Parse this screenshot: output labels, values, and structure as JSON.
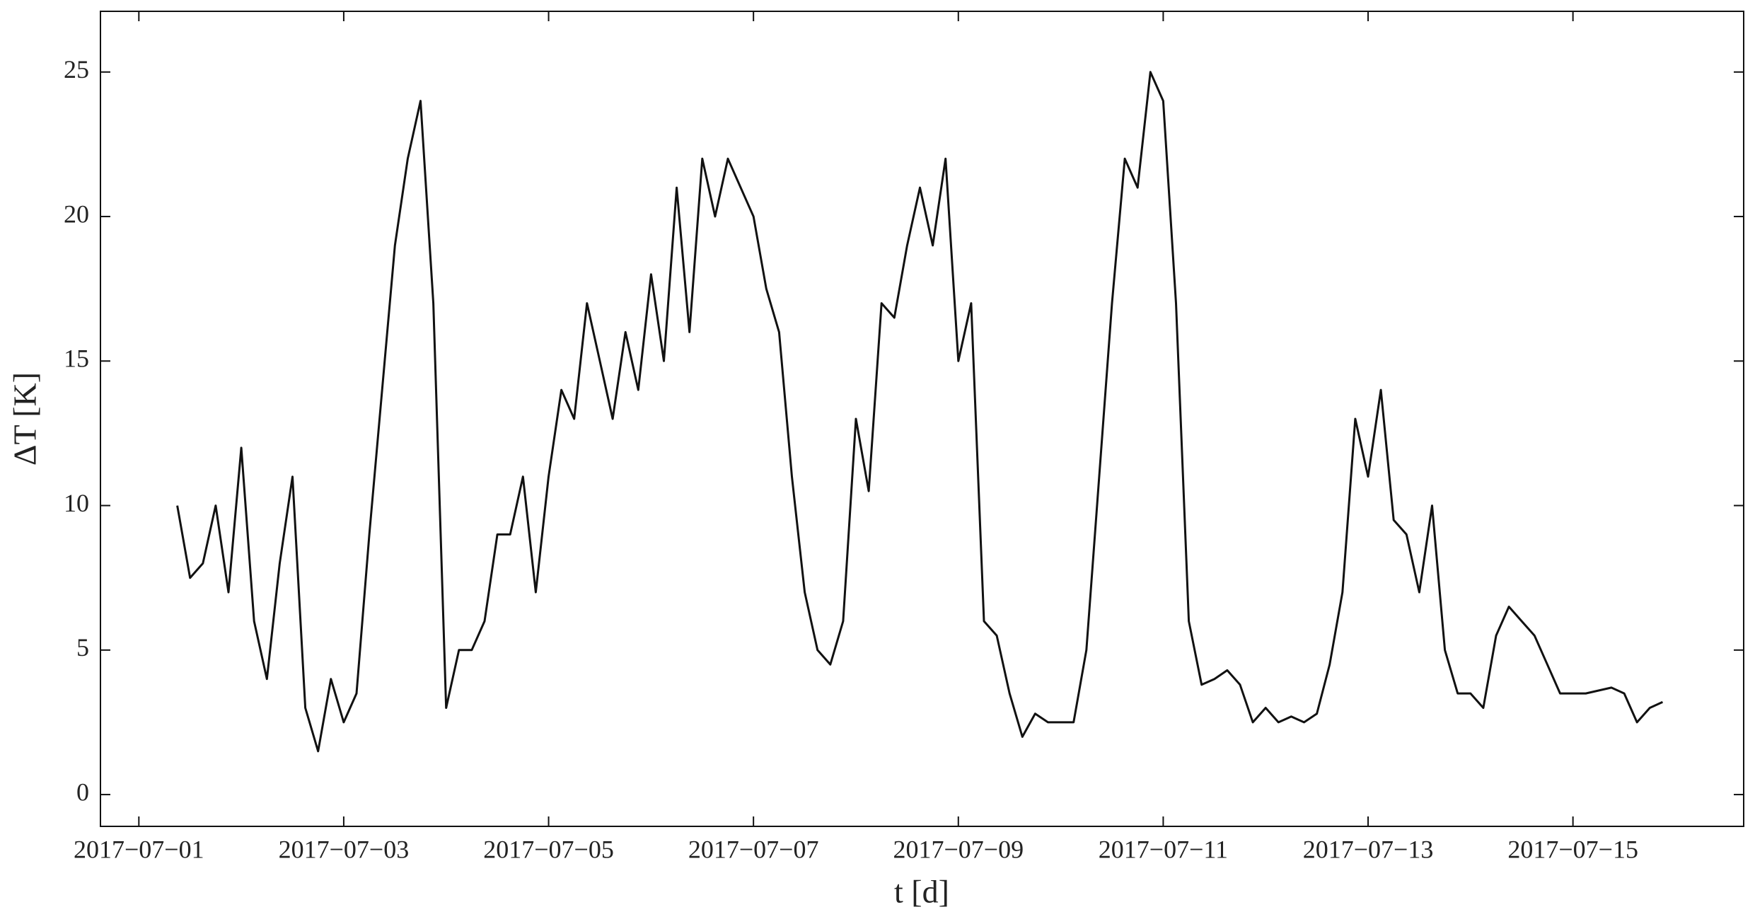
{
  "chart_data": {
    "type": "line",
    "x_label": "t [d]",
    "y_label": "ΔT [K]",
    "color": "#111111",
    "x": [
      "2017-07-01T09:00",
      "2017-07-01T12:00",
      "2017-07-01T15:00",
      "2017-07-01T18:00",
      "2017-07-01T21:00",
      "2017-07-02T00:00",
      "2017-07-02T03:00",
      "2017-07-02T06:00",
      "2017-07-02T09:00",
      "2017-07-02T12:00",
      "2017-07-02T15:00",
      "2017-07-02T18:00",
      "2017-07-02T21:00",
      "2017-07-03T00:00",
      "2017-07-03T03:00",
      "2017-07-03T06:00",
      "2017-07-03T09:00",
      "2017-07-03T12:00",
      "2017-07-03T15:00",
      "2017-07-03T18:00",
      "2017-07-03T21:00",
      "2017-07-04T00:00",
      "2017-07-04T03:00",
      "2017-07-04T06:00",
      "2017-07-04T09:00",
      "2017-07-04T12:00",
      "2017-07-04T15:00",
      "2017-07-04T18:00",
      "2017-07-04T21:00",
      "2017-07-05T00:00",
      "2017-07-05T03:00",
      "2017-07-05T06:00",
      "2017-07-05T09:00",
      "2017-07-05T12:00",
      "2017-07-05T15:00",
      "2017-07-05T18:00",
      "2017-07-05T21:00",
      "2017-07-06T00:00",
      "2017-07-06T03:00",
      "2017-07-06T06:00",
      "2017-07-06T09:00",
      "2017-07-06T12:00",
      "2017-07-06T15:00",
      "2017-07-06T18:00",
      "2017-07-06T21:00",
      "2017-07-07T00:00",
      "2017-07-07T03:00",
      "2017-07-07T06:00",
      "2017-07-07T09:00",
      "2017-07-07T12:00",
      "2017-07-07T15:00",
      "2017-07-07T18:00",
      "2017-07-07T21:00",
      "2017-07-08T00:00",
      "2017-07-08T03:00",
      "2017-07-08T06:00",
      "2017-07-08T09:00",
      "2017-07-08T12:00",
      "2017-07-08T15:00",
      "2017-07-08T18:00",
      "2017-07-08T21:00",
      "2017-07-09T00:00",
      "2017-07-09T03:00",
      "2017-07-09T06:00",
      "2017-07-09T09:00",
      "2017-07-09T12:00",
      "2017-07-09T15:00",
      "2017-07-09T18:00",
      "2017-07-09T21:00",
      "2017-07-10T00:00",
      "2017-07-10T03:00",
      "2017-07-10T06:00",
      "2017-07-10T09:00",
      "2017-07-10T12:00",
      "2017-07-10T15:00",
      "2017-07-10T18:00",
      "2017-07-10T21:00",
      "2017-07-11T00:00",
      "2017-07-11T03:00",
      "2017-07-11T06:00",
      "2017-07-11T09:00",
      "2017-07-11T12:00",
      "2017-07-11T15:00",
      "2017-07-11T18:00",
      "2017-07-11T21:00",
      "2017-07-12T00:00",
      "2017-07-12T03:00",
      "2017-07-12T06:00",
      "2017-07-12T09:00",
      "2017-07-12T12:00",
      "2017-07-12T15:00",
      "2017-07-12T18:00",
      "2017-07-12T21:00",
      "2017-07-13T00:00",
      "2017-07-13T03:00",
      "2017-07-13T06:00",
      "2017-07-13T09:00",
      "2017-07-13T12:00",
      "2017-07-13T15:00",
      "2017-07-13T18:00",
      "2017-07-13T21:00",
      "2017-07-14T00:00",
      "2017-07-14T03:00",
      "2017-07-14T06:00",
      "2017-07-14T09:00",
      "2017-07-14T12:00",
      "2017-07-14T15:00",
      "2017-07-14T18:00",
      "2017-07-14T21:00",
      "2017-07-15T00:00",
      "2017-07-15T03:00",
      "2017-07-15T06:00",
      "2017-07-15T09:00",
      "2017-07-15T12:00",
      "2017-07-15T15:00",
      "2017-07-15T18:00",
      "2017-07-15T21:00"
    ],
    "values": [
      10,
      7.5,
      8,
      10,
      7,
      12,
      6,
      4,
      8,
      11,
      3,
      1.5,
      4,
      2.5,
      3.5,
      9,
      14,
      19,
      22,
      24,
      17,
      3,
      5,
      5,
      6,
      9,
      9,
      11,
      7,
      11,
      14,
      13,
      17,
      15,
      13,
      16,
      14,
      18,
      15,
      21,
      16,
      22,
      20,
      22,
      21,
      20,
      17.5,
      16,
      11,
      7,
      5,
      4.5,
      6,
      13,
      10.5,
      17,
      16.5,
      19,
      21,
      19,
      22,
      15,
      17,
      6,
      5.5,
      3.5,
      2,
      2.8,
      2.5,
      2.5,
      2.5,
      5,
      11,
      17,
      22,
      21,
      25,
      24,
      17,
      6,
      3.8,
      4,
      4.3,
      3.8,
      2.5,
      3,
      2.5,
      2.7,
      2.5,
      2.8,
      4.5,
      7,
      13,
      11,
      14,
      9.5,
      9,
      7,
      10,
      5,
      3.5,
      3.5,
      3,
      5.5,
      6.5,
      6,
      5.5,
      4.5,
      3.5,
      3.5,
      3.5,
      3.6,
      3.7,
      3.5,
      2.5,
      3,
      3.2
    ],
    "xlim": [
      "2017-06-30T15:00",
      "2017-07-16T16:00"
    ],
    "xticks": [
      {
        "value": "2017-07-01",
        "label": "2017−07−01"
      },
      {
        "value": "2017-07-03",
        "label": "2017−07−03"
      },
      {
        "value": "2017-07-05",
        "label": "2017−07−05"
      },
      {
        "value": "2017-07-07",
        "label": "2017−07−07"
      },
      {
        "value": "2017-07-09",
        "label": "2017−07−09"
      },
      {
        "value": "2017-07-11",
        "label": "2017−07−11"
      },
      {
        "value": "2017-07-13",
        "label": "2017−07−13"
      },
      {
        "value": "2017-07-15",
        "label": "2017−07−15"
      }
    ],
    "ylim": [
      -1.1,
      27.1
    ],
    "yticks": [
      0,
      5,
      10,
      15,
      20,
      25
    ]
  }
}
